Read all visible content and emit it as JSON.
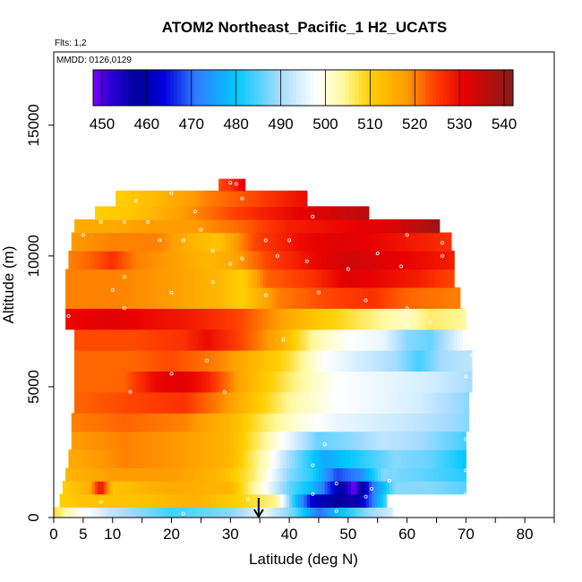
{
  "chart_data": {
    "type": "heatmap",
    "title": "ATOM2 Northeast_Pacific_1 H2_UCATS",
    "subtitle_flights": "Flts: 1,2",
    "subtitle_dates": "MMDD: 0126,0129",
    "xlabel": "Latitude (deg N)",
    "ylabel": "Altitude (m)",
    "xlim": [
      0,
      85
    ],
    "ylim": [
      0,
      17800
    ],
    "x_ticks": [
      0,
      5,
      10,
      20,
      30,
      40,
      50,
      60,
      70,
      80
    ],
    "x_minor_ticks": [
      15,
      25,
      35,
      45,
      55,
      65,
      75,
      85
    ],
    "y_ticks": [
      0,
      5000,
      10000,
      15000
    ],
    "colorbar": {
      "min": 448,
      "max": 542,
      "ticks": [
        450,
        460,
        470,
        480,
        490,
        500,
        510,
        520,
        530,
        540
      ],
      "palette": [
        {
          "v": 448,
          "c": "#7a00ff"
        },
        {
          "v": 452,
          "c": "#2a00d8"
        },
        {
          "v": 458,
          "c": "#00009a"
        },
        {
          "v": 464,
          "c": "#0000e0"
        },
        {
          "v": 471,
          "c": "#2f7dff"
        },
        {
          "v": 480,
          "c": "#00c8ff"
        },
        {
          "v": 490,
          "c": "#a8dcff"
        },
        {
          "v": 498,
          "c": "#ffffff"
        },
        {
          "v": 504,
          "c": "#fff9a0"
        },
        {
          "v": 510,
          "c": "#ffd000"
        },
        {
          "v": 518,
          "c": "#ff9d00"
        },
        {
          "v": 525,
          "c": "#ff3a00"
        },
        {
          "v": 531,
          "c": "#e80000"
        },
        {
          "v": 537,
          "c": "#b01010"
        },
        {
          "v": 542,
          "c": "#8b1a1a"
        }
      ]
    },
    "layers": [
      {
        "y0": 0,
        "y1": 400,
        "x0": 0,
        "x1": 57.5,
        "anchors": [
          [
            0,
            508
          ],
          [
            4,
            500
          ],
          [
            10,
            492
          ],
          [
            20,
            484
          ],
          [
            30,
            488
          ],
          [
            36,
            496
          ],
          [
            41,
            486
          ],
          [
            45,
            470
          ],
          [
            48,
            478
          ],
          [
            53,
            488
          ],
          [
            57.5,
            494
          ]
        ]
      },
      {
        "y0": 400,
        "y1": 900,
        "x0": 1,
        "x1": 56.5,
        "anchors": [
          [
            1,
            510
          ],
          [
            5,
            512
          ],
          [
            14,
            512
          ],
          [
            24,
            515
          ],
          [
            34,
            508
          ],
          [
            38,
            504
          ],
          [
            41,
            480
          ],
          [
            44,
            462
          ],
          [
            48,
            458
          ],
          [
            51,
            456
          ],
          [
            54,
            470
          ],
          [
            56.5,
            485
          ]
        ]
      },
      {
        "y0": 900,
        "y1": 1400,
        "x0": 1.5,
        "x1": 70,
        "anchors": [
          [
            1.5,
            510
          ],
          [
            6,
            515
          ],
          [
            8,
            530
          ],
          [
            10,
            512
          ],
          [
            20,
            516
          ],
          [
            30,
            514
          ],
          [
            34,
            504
          ],
          [
            40,
            486
          ],
          [
            44,
            478
          ],
          [
            48,
            462
          ],
          [
            51,
            448
          ],
          [
            54,
            470
          ],
          [
            58,
            488
          ],
          [
            64,
            488
          ],
          [
            70,
            485
          ]
        ]
      },
      {
        "y0": 1400,
        "y1": 1900,
        "x0": 2,
        "x1": 70,
        "anchors": [
          [
            2,
            514
          ],
          [
            10,
            518
          ],
          [
            20,
            518
          ],
          [
            28,
            514
          ],
          [
            34,
            506
          ],
          [
            40,
            488
          ],
          [
            44,
            482
          ],
          [
            48,
            468
          ],
          [
            52,
            472
          ],
          [
            56,
            488
          ],
          [
            62,
            486
          ],
          [
            70,
            482
          ]
        ]
      },
      {
        "y0": 1900,
        "y1": 2600,
        "x0": 2.5,
        "x1": 70,
        "anchors": [
          [
            2.5,
            516
          ],
          [
            12,
            520
          ],
          [
            22,
            518
          ],
          [
            30,
            514
          ],
          [
            36,
            502
          ],
          [
            40,
            490
          ],
          [
            46,
            476
          ],
          [
            52,
            482
          ],
          [
            58,
            488
          ],
          [
            64,
            486
          ],
          [
            70,
            480
          ]
        ]
      },
      {
        "y0": 2600,
        "y1": 3300,
        "x0": 3,
        "x1": 70,
        "anchors": [
          [
            3,
            518
          ],
          [
            12,
            520
          ],
          [
            22,
            518
          ],
          [
            30,
            514
          ],
          [
            36,
            504
          ],
          [
            40,
            496
          ],
          [
            45,
            486
          ],
          [
            50,
            488
          ],
          [
            56,
            492
          ],
          [
            62,
            490
          ],
          [
            70,
            484
          ]
        ]
      },
      {
        "y0": 3300,
        "y1": 4000,
        "x0": 3,
        "x1": 70.5,
        "anchors": [
          [
            3,
            520
          ],
          [
            12,
            522
          ],
          [
            22,
            520
          ],
          [
            30,
            514
          ],
          [
            36,
            506
          ],
          [
            42,
            500
          ],
          [
            48,
            496
          ],
          [
            56,
            494
          ],
          [
            62,
            492
          ],
          [
            70.5,
            488
          ]
        ]
      },
      {
        "y0": 4000,
        "y1": 4800,
        "x0": 3.5,
        "x1": 70.5,
        "anchors": [
          [
            3.5,
            522
          ],
          [
            12,
            524
          ],
          [
            22,
            526
          ],
          [
            28,
            520
          ],
          [
            34,
            512
          ],
          [
            40,
            504
          ],
          [
            48,
            498
          ],
          [
            56,
            496
          ],
          [
            62,
            494
          ],
          [
            70.5,
            488
          ]
        ]
      },
      {
        "y0": 4800,
        "y1": 5600,
        "x0": 3.5,
        "x1": 71,
        "anchors": [
          [
            3.5,
            522
          ],
          [
            12,
            522
          ],
          [
            17,
            530
          ],
          [
            22,
            532
          ],
          [
            26,
            528
          ],
          [
            32,
            516
          ],
          [
            40,
            506
          ],
          [
            48,
            498
          ],
          [
            56,
            496
          ],
          [
            64,
            494
          ],
          [
            71,
            490
          ]
        ]
      },
      {
        "y0": 5600,
        "y1": 6400,
        "x0": 3.5,
        "x1": 71,
        "anchors": [
          [
            3.5,
            522
          ],
          [
            14,
            522
          ],
          [
            20,
            524
          ],
          [
            28,
            520
          ],
          [
            34,
            514
          ],
          [
            40,
            508
          ],
          [
            46,
            498
          ],
          [
            52,
            494
          ],
          [
            58,
            490
          ],
          [
            62,
            484
          ],
          [
            66,
            490
          ],
          [
            71,
            492
          ]
        ]
      },
      {
        "y0": 6400,
        "y1": 7200,
        "x0": 3.5,
        "x1": 70,
        "anchors": [
          [
            3.5,
            524
          ],
          [
            14,
            524
          ],
          [
            22,
            526
          ],
          [
            26,
            530
          ],
          [
            32,
            524
          ],
          [
            38,
            516
          ],
          [
            44,
            504
          ],
          [
            50,
            498
          ],
          [
            56,
            496
          ],
          [
            60,
            488
          ],
          [
            64,
            486
          ],
          [
            70,
            498
          ]
        ]
      },
      {
        "y0": 7200,
        "y1": 8000,
        "x0": 2,
        "x1": 70,
        "anchors": [
          [
            2,
            530
          ],
          [
            10,
            532
          ],
          [
            16,
            530
          ],
          [
            24,
            528
          ],
          [
            32,
            524
          ],
          [
            38,
            518
          ],
          [
            44,
            512
          ],
          [
            50,
            508
          ],
          [
            56,
            504
          ],
          [
            60,
            502
          ],
          [
            64,
            506
          ],
          [
            70,
            504
          ]
        ]
      },
      {
        "y0": 8000,
        "y1": 8800,
        "x0": 2,
        "x1": 69,
        "anchors": [
          [
            2,
            520
          ],
          [
            10,
            520
          ],
          [
            20,
            518
          ],
          [
            28,
            514
          ],
          [
            32,
            510
          ],
          [
            38,
            520
          ],
          [
            46,
            524
          ],
          [
            54,
            526
          ],
          [
            60,
            522
          ],
          [
            69,
            520
          ]
        ]
      },
      {
        "y0": 8800,
        "y1": 9500,
        "x0": 2,
        "x1": 68,
        "anchors": [
          [
            2,
            520
          ],
          [
            10,
            520
          ],
          [
            20,
            518
          ],
          [
            28,
            514
          ],
          [
            32,
            510
          ],
          [
            36,
            522
          ],
          [
            44,
            526
          ],
          [
            50,
            532
          ],
          [
            56,
            530
          ],
          [
            62,
            528
          ],
          [
            68,
            524
          ]
        ]
      },
      {
        "y0": 9500,
        "y1": 10200,
        "x0": 2.5,
        "x1": 68,
        "anchors": [
          [
            2.5,
            520
          ],
          [
            6,
            522
          ],
          [
            10,
            526
          ],
          [
            14,
            520
          ],
          [
            20,
            518
          ],
          [
            26,
            514
          ],
          [
            30,
            516
          ],
          [
            36,
            524
          ],
          [
            44,
            530
          ],
          [
            50,
            534
          ],
          [
            56,
            532
          ],
          [
            62,
            530
          ],
          [
            68,
            528
          ]
        ]
      },
      {
        "y0": 10200,
        "y1": 10900,
        "x0": 3,
        "x1": 67.5,
        "anchors": [
          [
            3,
            518
          ],
          [
            10,
            520
          ],
          [
            18,
            520
          ],
          [
            24,
            514
          ],
          [
            28,
            512
          ],
          [
            34,
            524
          ],
          [
            42,
            530
          ],
          [
            50,
            532
          ],
          [
            56,
            530
          ],
          [
            62,
            528
          ],
          [
            67.5,
            526
          ]
        ]
      },
      {
        "y0": 10900,
        "y1": 11400,
        "x0": 3.5,
        "x1": 65.5,
        "anchors": [
          [
            3.5,
            516
          ],
          [
            10,
            516
          ],
          [
            16,
            518
          ],
          [
            24,
            518
          ],
          [
            32,
            522
          ],
          [
            40,
            528
          ],
          [
            48,
            530
          ],
          [
            56,
            532
          ],
          [
            62,
            536
          ],
          [
            65.5,
            540
          ]
        ]
      },
      {
        "y0": 11400,
        "y1": 11900,
        "x0": 7,
        "x1": 53.5,
        "anchors": [
          [
            7,
            510
          ],
          [
            14,
            512
          ],
          [
            22,
            518
          ],
          [
            30,
            524
          ],
          [
            36,
            528
          ],
          [
            44,
            532
          ],
          [
            53.5,
            536
          ]
        ]
      },
      {
        "y0": 11900,
        "y1": 12500,
        "x0": 10.5,
        "x1": 43,
        "anchors": [
          [
            10.5,
            510
          ],
          [
            18,
            514
          ],
          [
            26,
            520
          ],
          [
            34,
            524
          ],
          [
            43,
            530
          ]
        ]
      },
      {
        "y0": 12500,
        "y1": 12950,
        "x0": 28,
        "x1": 32.5,
        "anchors": [
          [
            28,
            524
          ],
          [
            30,
            526
          ],
          [
            32.5,
            532
          ]
        ]
      }
    ],
    "samples": [
      [
        2,
        100
      ],
      [
        22,
        150
      ],
      [
        35,
        200
      ],
      [
        48,
        250
      ],
      [
        8,
        600
      ],
      [
        33,
        700
      ],
      [
        44,
        900
      ],
      [
        53,
        800
      ],
      [
        48,
        1300
      ],
      [
        57,
        1400
      ],
      [
        44,
        2000
      ],
      [
        46,
        2800
      ],
      [
        54,
        1100
      ],
      [
        13,
        4800
      ],
      [
        20,
        5500
      ],
      [
        26,
        6000
      ],
      [
        29,
        4800
      ],
      [
        39,
        6800
      ],
      [
        51,
        7000
      ],
      [
        60,
        7300
      ],
      [
        64,
        7500
      ],
      [
        12,
        8000
      ],
      [
        36,
        8500
      ],
      [
        45,
        8600
      ],
      [
        53,
        8300
      ],
      [
        60,
        8000
      ],
      [
        2.5,
        7700
      ],
      [
        10,
        8700
      ],
      [
        12,
        9200
      ],
      [
        20,
        8600
      ],
      [
        27,
        9000
      ],
      [
        38,
        10000
      ],
      [
        43,
        9800
      ],
      [
        50,
        9500
      ],
      [
        59,
        9600
      ],
      [
        66,
        10500
      ],
      [
        3,
        11300
      ],
      [
        5,
        10800
      ],
      [
        8,
        11300
      ],
      [
        12,
        11300
      ],
      [
        16,
        11300
      ],
      [
        18,
        10600
      ],
      [
        22,
        10600
      ],
      [
        25,
        11000
      ],
      [
        27,
        10200
      ],
      [
        30,
        9700
      ],
      [
        32,
        9900
      ],
      [
        36,
        10600
      ],
      [
        40,
        10600
      ],
      [
        44,
        11500
      ],
      [
        55,
        10100
      ],
      [
        60,
        10800
      ],
      [
        66,
        10000
      ],
      [
        20,
        12400
      ],
      [
        30,
        12800
      ],
      [
        31,
        12750
      ],
      [
        24,
        11700
      ],
      [
        14,
        12100
      ],
      [
        32,
        12200
      ],
      [
        70,
        5400
      ],
      [
        70,
        3000
      ],
      [
        70,
        1800
      ],
      [
        70,
        900
      ],
      [
        71,
        6200
      ]
    ],
    "arrow": {
      "x": 34.8,
      "y_from": 650,
      "y_to": 0
    }
  }
}
